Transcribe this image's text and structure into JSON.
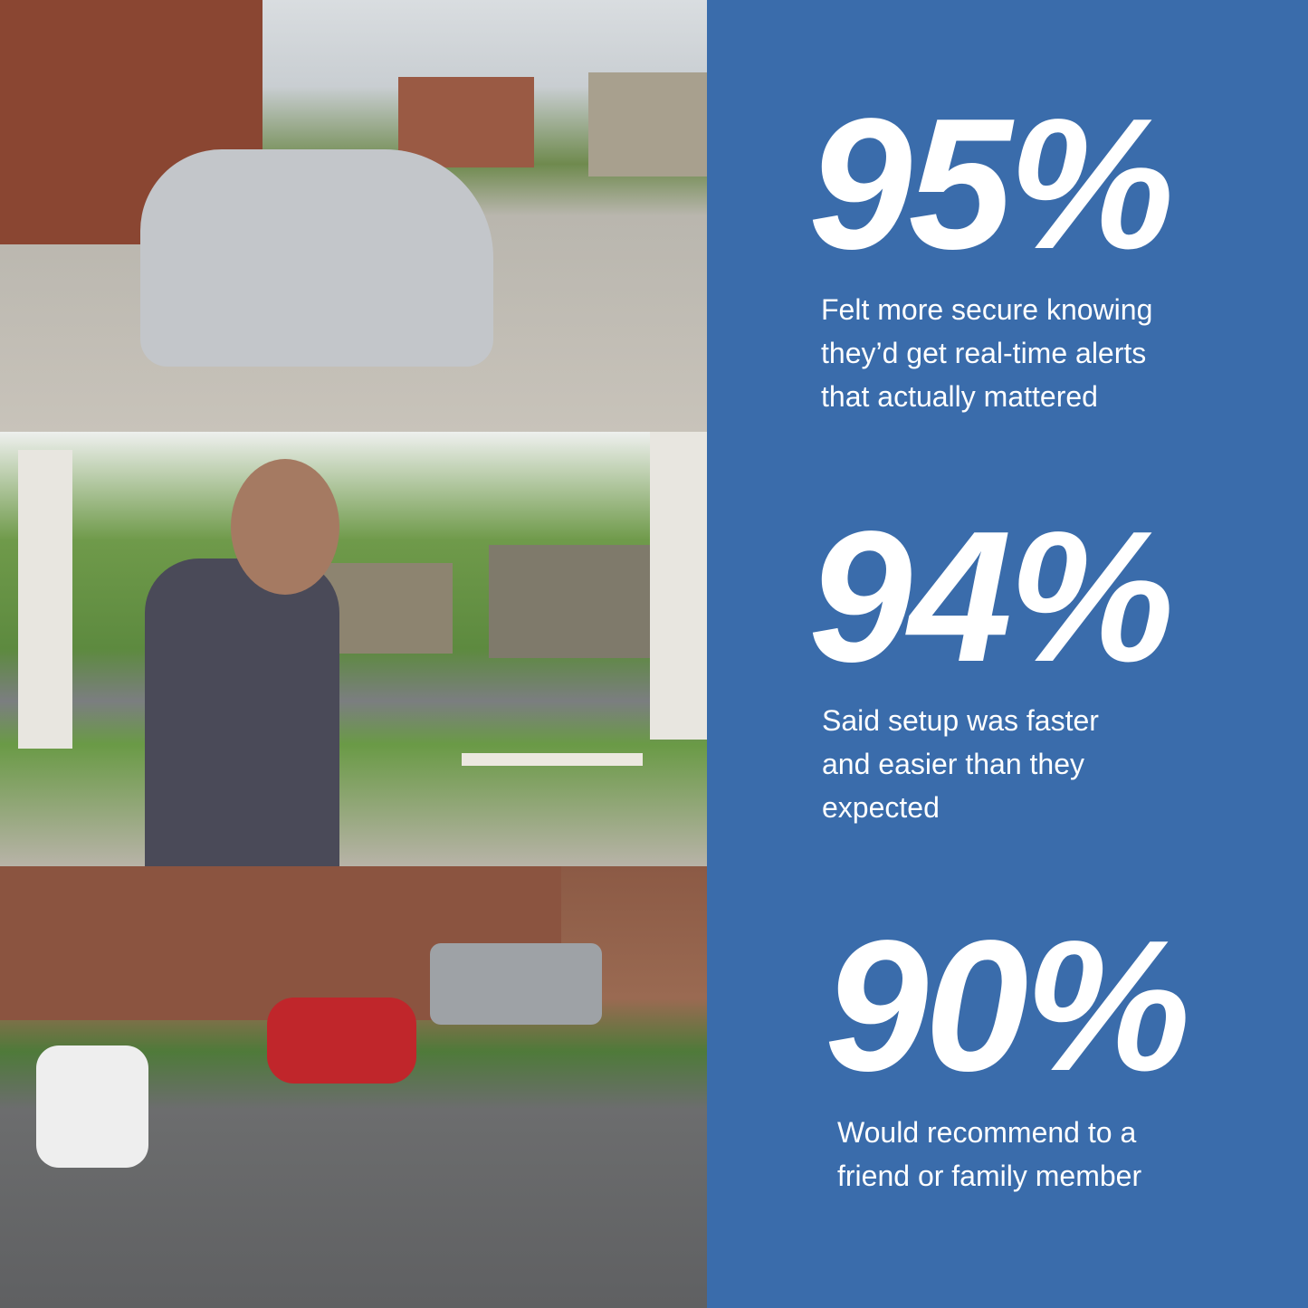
{
  "colors": {
    "panel": "#3a6cab",
    "text": "#ffffff"
  },
  "photos": [
    {
      "scene": "driveway-with-silver-car"
    },
    {
      "scene": "man-on-porch-with-phone"
    },
    {
      "scene": "parking-lot-overhead"
    }
  ],
  "stats": [
    {
      "value": "95%",
      "description": "Felt more secure knowing\nthey’d get real-time alerts\nthat actually mattered"
    },
    {
      "value": "94%",
      "description": "Said setup was faster\nand easier than they\nexpected"
    },
    {
      "value": "90%",
      "description": "Would recommend to a\nfriend or family member"
    }
  ]
}
